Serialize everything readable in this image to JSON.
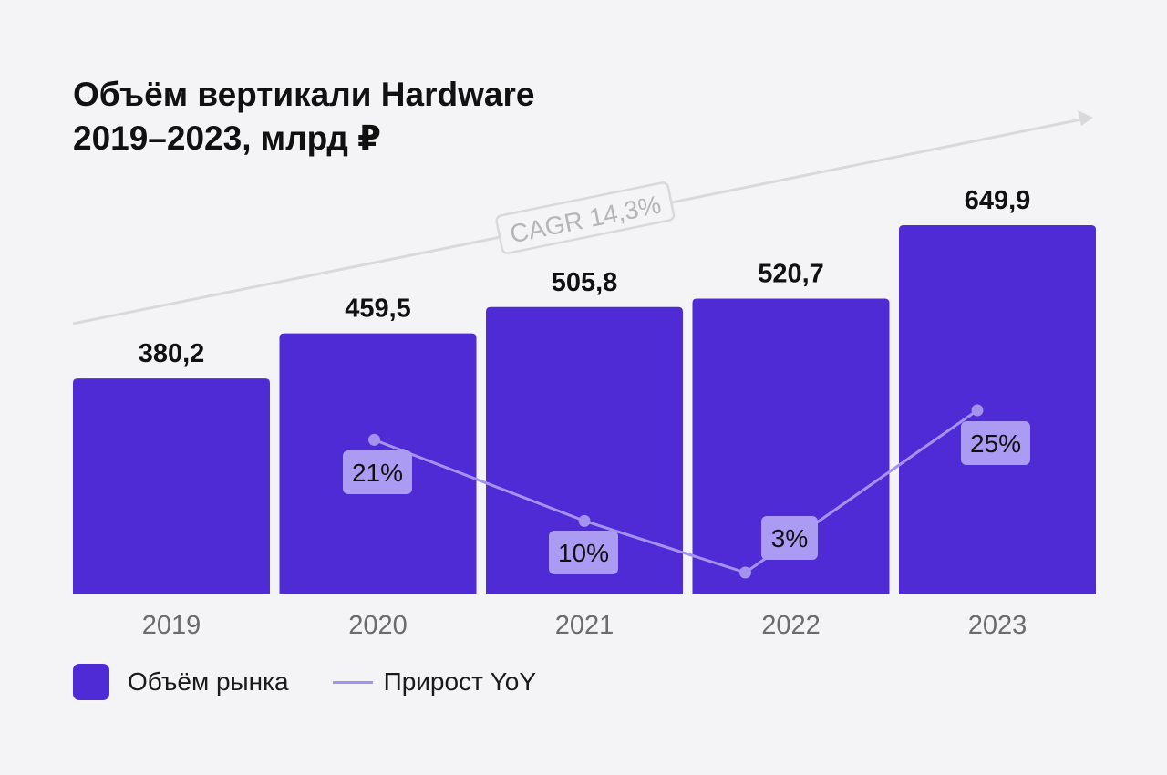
{
  "title": {
    "line1": "Объём вертикали Hardware",
    "line2": "2019–2023, млрд ₽"
  },
  "colors": {
    "bar": "#4e2bd4",
    "line": "#a592ef",
    "badge": "#ab9bf3",
    "axis_label": "#6b6b6b",
    "cagr_arrow": "#d9d9db",
    "background": "#f4f4f6"
  },
  "legend": {
    "bar_label": "Объём рынка",
    "line_label": "Прирост YoY"
  },
  "chart_data": {
    "type": "bar",
    "categories": [
      "2019",
      "2020",
      "2021",
      "2022",
      "2023"
    ],
    "series": [
      {
        "name": "Объём рынка",
        "values": [
          380.2,
          459.5,
          505.8,
          520.7,
          649.9
        ],
        "labels": [
          "380,2",
          "459,5",
          "505,8",
          "520,7",
          "649,9"
        ]
      },
      {
        "name": "Прирост YoY",
        "type": "line",
        "values": [
          null,
          21,
          10,
          3,
          25
        ],
        "labels": [
          "",
          "21%",
          "10%",
          "3%",
          "25%"
        ]
      }
    ],
    "annotation": "CAGR 14,3%",
    "ylim": [
      0,
      649.9
    ]
  }
}
